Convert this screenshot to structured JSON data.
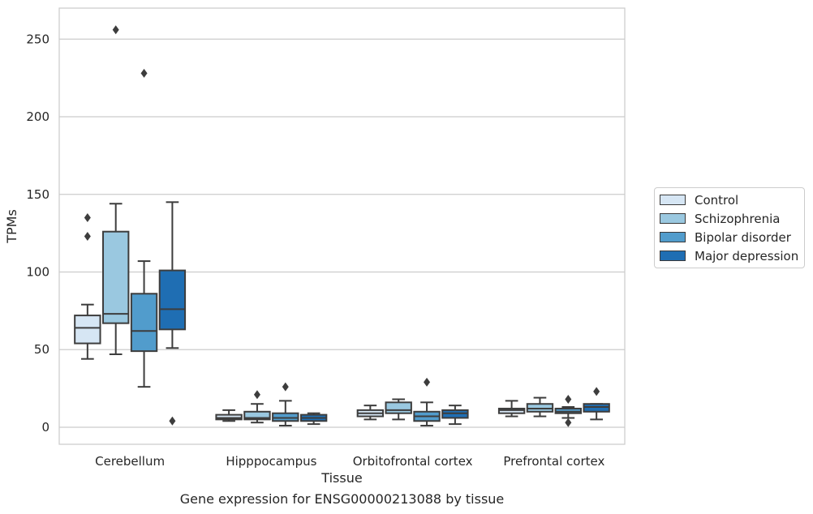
{
  "caption": "Gene expression for ENSG00000213088 by tissue",
  "chart_data": {
    "type": "box",
    "xlabel": "Tissue",
    "ylabel": "TPMs",
    "ylim": [
      -11,
      270
    ],
    "yticks": [
      0,
      50,
      100,
      150,
      200,
      250
    ],
    "grid": "horizontal",
    "legend_position": "right",
    "categories": [
      "Cerebellum",
      "Hipppocampus",
      "Orbitofrontal cortex",
      "Prefrontal cortex"
    ],
    "series": [
      {
        "name": "Control",
        "color": "#d6e6f4",
        "boxes": [
          {
            "whislo": 44,
            "q1": 54,
            "med": 64,
            "q3": 72,
            "whishi": 79,
            "fliers": [
              123,
              135
            ]
          },
          {
            "whislo": 4,
            "q1": 5,
            "med": 6,
            "q3": 8,
            "whishi": 11,
            "fliers": []
          },
          {
            "whislo": 5,
            "q1": 7,
            "med": 9,
            "q3": 11,
            "whishi": 14,
            "fliers": []
          },
          {
            "whislo": 7,
            "q1": 9,
            "med": 11,
            "q3": 12,
            "whishi": 17,
            "fliers": []
          }
        ]
      },
      {
        "name": "Schizophrenia",
        "color": "#9ac8e0",
        "boxes": [
          {
            "whislo": 47,
            "q1": 67,
            "med": 73,
            "q3": 126,
            "whishi": 144,
            "fliers": [
              256
            ]
          },
          {
            "whislo": 3,
            "q1": 5,
            "med": 6,
            "q3": 10,
            "whishi": 15,
            "fliers": [
              21
            ]
          },
          {
            "whislo": 5,
            "q1": 9,
            "med": 11,
            "q3": 16,
            "whishi": 18,
            "fliers": []
          },
          {
            "whislo": 7,
            "q1": 10,
            "med": 12,
            "q3": 15,
            "whishi": 19,
            "fliers": []
          }
        ]
      },
      {
        "name": "Bipolar disorder",
        "color": "#519ccc",
        "boxes": [
          {
            "whislo": 26,
            "q1": 49,
            "med": 62,
            "q3": 86,
            "whishi": 107,
            "fliers": [
              228
            ]
          },
          {
            "whislo": 1,
            "q1": 4,
            "med": 6,
            "q3": 9,
            "whishi": 17,
            "fliers": [
              26
            ]
          },
          {
            "whislo": 1,
            "q1": 4,
            "med": 7,
            "q3": 10,
            "whishi": 16,
            "fliers": [
              29
            ]
          },
          {
            "whislo": 6,
            "q1": 9,
            "med": 10,
            "q3": 12,
            "whishi": 13,
            "fliers": [
              3,
              18
            ]
          }
        ]
      },
      {
        "name": "Major depression",
        "color": "#1f6eb3",
        "boxes": [
          {
            "whislo": 51,
            "q1": 63,
            "med": 76,
            "q3": 101,
            "whishi": 145,
            "fliers": [
              4
            ]
          },
          {
            "whislo": 2,
            "q1": 4,
            "med": 6,
            "q3": 8,
            "whishi": 9,
            "fliers": []
          },
          {
            "whislo": 2,
            "q1": 6,
            "med": 9,
            "q3": 11,
            "whishi": 14,
            "fliers": []
          },
          {
            "whislo": 5,
            "q1": 10,
            "med": 13,
            "q3": 15,
            "whishi": 15,
            "fliers": [
              23
            ]
          }
        ]
      }
    ]
  }
}
